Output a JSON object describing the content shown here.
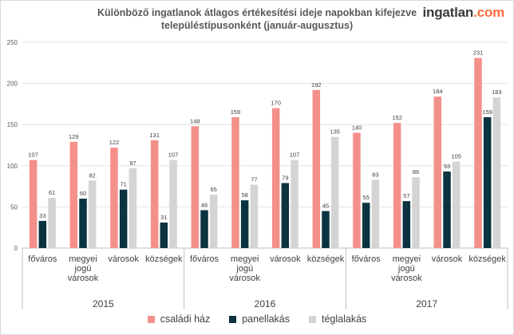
{
  "header": {
    "title_line1": "Különböző ingatlanok átlagos értékesítési ideje napokban kifejezve",
    "title_line2": "településtípusonként (január-augusztus)",
    "brand_main": "ingatlan",
    "brand_tld": ".com"
  },
  "colors": {
    "csaladi_haz": "#f4908a",
    "panellakas": "#0b3340",
    "teglalakas": "#d4d4d4"
  },
  "chart_data": {
    "type": "bar",
    "title": "Különböző ingatlanok átlagos értékesítési ideje napokban kifejezve településtípusonként (január-augusztus)",
    "ylim": [
      0,
      250
    ],
    "yticks": [
      0,
      50,
      100,
      150,
      200,
      250
    ],
    "grid": true,
    "legend_position": "bottom",
    "groups": [
      {
        "year": "2015",
        "categories": [
          "főváros",
          "megyei jogú városok",
          "városok",
          "községek"
        ]
      },
      {
        "year": "2016",
        "categories": [
          "főváros",
          "megyei jogú városok",
          "városok",
          "községek"
        ]
      },
      {
        "year": "2017",
        "categories": [
          "főváros",
          "megyei jogú városok",
          "városok",
          "községek"
        ]
      }
    ],
    "series": [
      {
        "name": "családi ház",
        "values": [
          107,
          129,
          122,
          131,
          148,
          159,
          170,
          192,
          140,
          152,
          184,
          231
        ]
      },
      {
        "name": "panellakás",
        "values": [
          33,
          60,
          71,
          31,
          46,
          58,
          79,
          45,
          55,
          57,
          93,
          159
        ]
      },
      {
        "name": "téglalakás",
        "values": [
          61,
          82,
          97,
          107,
          65,
          77,
          107,
          135,
          83,
          86,
          105,
          183
        ]
      }
    ]
  }
}
